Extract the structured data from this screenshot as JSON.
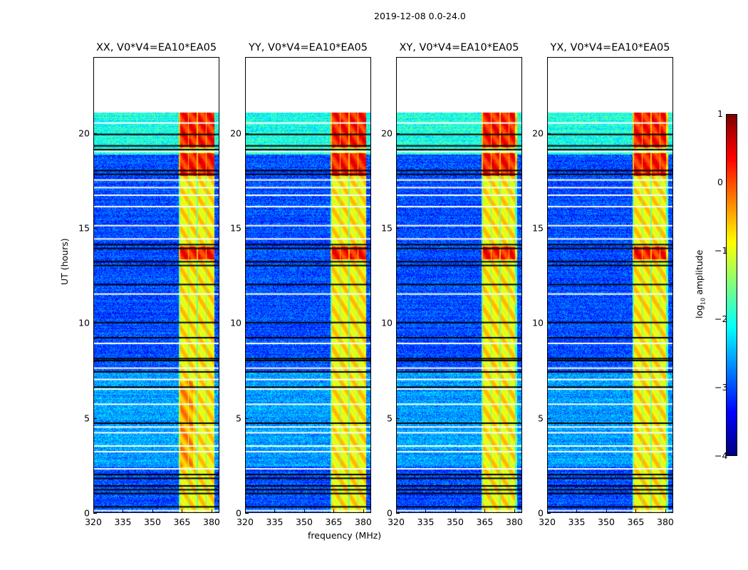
{
  "chart_data": {
    "type": "heatmap",
    "title": "2019-12-08 0.0-24.0",
    "xlabel": "frequency (MHz)",
    "ylabel": "UT (hours)",
    "xlim": [
      320,
      384
    ],
    "ylim": [
      0,
      24
    ],
    "xticks": [
      "320",
      "335",
      "350",
      "365",
      "380"
    ],
    "yticks": [
      "0",
      "5",
      "10",
      "15",
      "20"
    ],
    "data_time_range": [
      0,
      21.1
    ],
    "rfi_band_mhz": [
      363,
      381
    ],
    "panels": [
      {
        "title": "XX, V0*V4=EA10*EA05"
      },
      {
        "title": "YY, V0*V4=EA10*EA05"
      },
      {
        "title": "XY, V0*V4=EA10*EA05"
      },
      {
        "title": "YX, V0*V4=EA10*EA05"
      }
    ],
    "flagged_hours_white": [
      0.2,
      2.4,
      3.3,
      3.6,
      4.3,
      4.6,
      5.8,
      6.6,
      7.1,
      7.7,
      9.0,
      11.6,
      14.5,
      15.2,
      16.2,
      16.8,
      17.2,
      17.6,
      19.1,
      20.6
    ],
    "flagged_hours_black": [
      0.4,
      1.1,
      1.3,
      1.5,
      1.9,
      2.1,
      4.8,
      6.7,
      7.5,
      8.1,
      8.2,
      9.3,
      10.1,
      12.1,
      13.1,
      13.3,
      14.0,
      14.2,
      17.9,
      18.1,
      19.2,
      19.4,
      20.0
    ],
    "colorbar": {
      "label": "log10 amplitude",
      "ticks": [
        "1",
        "0",
        "−1",
        "−2",
        "−3",
        "−4"
      ],
      "range": [
        -4,
        1
      ],
      "colormap": "jet"
    }
  }
}
